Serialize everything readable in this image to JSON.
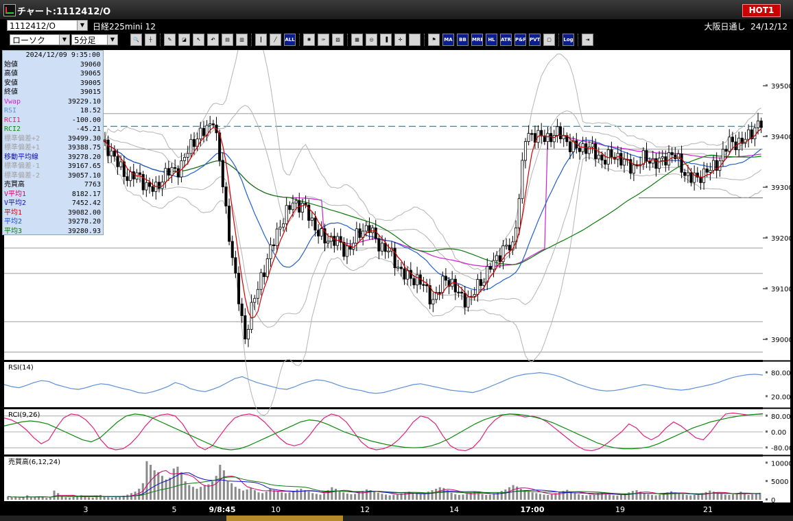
{
  "window": {
    "title": "チャート:1112412/O",
    "hot_label": "HOT1"
  },
  "instrument_bar": {
    "symbol_value": "1112412/O",
    "instrument_name": "日経225mini 12",
    "market": "大阪日通し",
    "date": "24/12/12"
  },
  "toolbar": {
    "chart_type": "ローソク",
    "interval": "5分足",
    "icons": [
      "magnifier-icon",
      "crosshair-icon",
      "pen-icon",
      "eraser-icon",
      "pointer-icon",
      "undo-icon",
      "document-icon",
      "trash-icon",
      "candle-icon",
      "line-chart-icon",
      "all-icon",
      "gear-icon",
      "wrench-icon",
      "palette-icon",
      "chart-add-icon",
      "zoom-chart-icon",
      "bar-chart-icon",
      "mark-icon",
      "blank-icon",
      "flag-icon",
      "ma-icon",
      "bb-icon",
      "mre-icon",
      "hl-icon",
      "atr-icon",
      "pg-icon",
      "pvt-icon",
      "frame-icon",
      "log-icon",
      "exit-icon"
    ],
    "text_buttons": [
      "ALL",
      "MA",
      "BB",
      "MRE",
      "HL",
      "ATR",
      "P&F",
      "PVT",
      "Log"
    ]
  },
  "info_panel": {
    "datetime": "2024/12/09 9:35:00",
    "rows": [
      {
        "label": "始値",
        "value": "39060",
        "color": "#000000"
      },
      {
        "label": "高値",
        "value": "39065",
        "color": "#000000"
      },
      {
        "label": "安値",
        "value": "39005",
        "color": "#000000"
      },
      {
        "label": "終値",
        "value": "39015",
        "color": "#000000"
      },
      {
        "label": "Vwap",
        "value": "39229.10",
        "color": "#d020d0"
      },
      {
        "label": "RSI",
        "value": "18.52",
        "color": "#5b8fd8"
      },
      {
        "label": "RCI1",
        "value": "-100.00",
        "color": "#e0207c"
      },
      {
        "label": "RCI2",
        "value": "-45.21",
        "color": "#0a8a0a"
      },
      {
        "label": "標準偏差+2",
        "value": "39499.30",
        "color": "#a0a0a0"
      },
      {
        "label": "標準偏差+1",
        "value": "39388.75",
        "color": "#a0a0a0"
      },
      {
        "label": "移動平均線",
        "value": "39278.20",
        "color": "#1010b0"
      },
      {
        "label": "標準偏差-1",
        "value": "39167.65",
        "color": "#a0a0a0"
      },
      {
        "label": "標準偏差-2",
        "value": "39057.10",
        "color": "#a0a0a0"
      },
      {
        "label": "売買高",
        "value": "7763",
        "color": "#000000"
      },
      {
        "label": "V平均1",
        "value": "8182.17",
        "color": "#d0006a"
      },
      {
        "label": "V平均2",
        "value": "7452.42",
        "color": "#1010c0"
      },
      {
        "label": "平均1",
        "value": "39082.00",
        "color": "#d00000"
      },
      {
        "label": "平均2",
        "value": "39278.20",
        "color": "#1050d0"
      },
      {
        "label": "平均3",
        "value": "39280.93",
        "color": "#0a7a0a"
      }
    ]
  },
  "chart_data": [
    {
      "type": "candlestick",
      "y_ticks": [
        "39500",
        "39400",
        "39300",
        "39200",
        "39100",
        "39000"
      ],
      "ylim": [
        38965,
        39565
      ],
      "x_labels": [
        "3",
        "5",
        "9/8:45",
        "10",
        "12",
        "14",
        "17:00",
        "19",
        "21"
      ],
      "dashed_level": 39420,
      "reference_levels": [
        39445,
        39375,
        39180,
        39130,
        39035,
        38975
      ],
      "flat_level": 39279,
      "segments": [
        {
          "start": 39385,
          "end": 39320,
          "n": 9
        },
        {
          "start": 39320,
          "end": 39300,
          "n": 8
        },
        {
          "start": 39300,
          "end": 39350,
          "n": 8
        },
        {
          "start": 39350,
          "end": 39440,
          "n": 10
        },
        {
          "start": 39440,
          "end": 39250,
          "n": 4
        },
        {
          "start": 39250,
          "end": 39000,
          "n": 6
        },
        {
          "start": 39000,
          "end": 39130,
          "n": 5
        },
        {
          "start": 39130,
          "end": 39280,
          "n": 10
        },
        {
          "start": 39280,
          "end": 39200,
          "n": 10
        },
        {
          "start": 39200,
          "end": 39180,
          "n": 6
        },
        {
          "start": 39180,
          "end": 39220,
          "n": 8
        },
        {
          "start": 39220,
          "end": 39150,
          "n": 8
        },
        {
          "start": 39150,
          "end": 39085,
          "n": 12
        },
        {
          "start": 39085,
          "end": 39115,
          "n": 4
        },
        {
          "start": 39115,
          "end": 39075,
          "n": 8
        },
        {
          "start": 39075,
          "end": 39150,
          "n": 6
        },
        {
          "start": 39150,
          "end": 39185,
          "n": 7
        },
        {
          "start": 39185,
          "end": 39395,
          "n": 4
        },
        {
          "start": 39395,
          "end": 39405,
          "n": 8
        },
        {
          "start": 39405,
          "end": 39370,
          "n": 12
        },
        {
          "start": 39370,
          "end": 39345,
          "n": 14
        },
        {
          "start": 39345,
          "end": 39360,
          "n": 12
        },
        {
          "start": 39360,
          "end": 39310,
          "n": 8
        },
        {
          "start": 39310,
          "end": 39380,
          "n": 10
        },
        {
          "start": 39380,
          "end": 39420,
          "n": 10
        }
      ]
    },
    {
      "type": "line",
      "title": "RSI(14)",
      "y_ticks": [
        "80.00",
        "20.00"
      ],
      "ylim": [
        0,
        100
      ],
      "values": [
        50,
        45,
        42,
        48,
        55,
        60,
        58,
        50,
        45,
        40,
        38,
        42,
        48,
        52,
        50,
        45,
        40,
        36,
        30,
        28,
        32,
        38,
        45,
        55,
        50,
        40,
        35,
        32,
        38,
        45,
        55,
        65,
        70,
        62,
        55,
        50,
        45,
        40,
        38,
        44,
        52,
        58,
        62,
        60,
        55,
        48,
        42,
        38,
        35,
        30,
        28,
        30,
        35,
        40,
        45,
        50,
        52,
        48,
        44,
        40,
        36,
        34,
        32,
        30,
        35,
        42,
        50,
        58,
        66,
        72,
        76,
        78,
        80,
        78,
        74,
        68,
        60,
        52,
        46,
        40,
        36,
        34,
        35,
        38,
        42,
        46,
        50,
        48,
        44,
        40,
        38,
        36,
        38,
        42,
        46,
        50,
        55,
        62,
        68,
        72,
        75,
        76,
        74
      ]
    },
    {
      "type": "line",
      "title": "RCI(9,26)",
      "y_ticks": [
        "80.00",
        "0.00",
        "-80.00"
      ],
      "ylim": [
        -100,
        100
      ],
      "series": [
        {
          "values": [
            70,
            60,
            40,
            10,
            -30,
            -60,
            -40,
            20,
            70,
            90,
            85,
            60,
            20,
            -40,
            -80,
            -90,
            -85,
            -60,
            -20,
            30,
            70,
            85,
            90,
            80,
            40,
            -20,
            -70,
            -90,
            -70,
            -20,
            30,
            70,
            85,
            90,
            80,
            50,
            10,
            -30,
            -60,
            -70,
            -60,
            -20,
            30,
            70,
            90,
            80,
            50,
            0,
            -50,
            -80,
            -90,
            -85,
            -70,
            -40,
            0,
            50,
            80,
            70,
            40,
            -20,
            -70,
            -90,
            -95,
            -80,
            -40,
            20,
            60,
            85,
            90,
            85,
            75,
            80,
            70,
            50,
            20,
            -10,
            -40,
            -70,
            -90,
            -95,
            -85,
            -60,
            -30,
            0,
            40,
            20,
            -20,
            -40,
            -20,
            20,
            50,
            30,
            0,
            -30,
            -40,
            0,
            50,
            90,
            95,
            90,
            85,
            88,
            92
          ]
        },
        {
          "values": [
            30,
            40,
            50,
            55,
            50,
            40,
            20,
            0,
            -20,
            -40,
            -50,
            -30,
            10,
            50,
            80,
            90,
            85,
            70,
            50,
            30,
            10,
            -10,
            -30,
            -50,
            -70,
            -85,
            -90,
            -85,
            -70,
            -50,
            -30,
            -10,
            10,
            30,
            50,
            60,
            55,
            40,
            20,
            0,
            -15,
            -30,
            -45,
            -55,
            -65,
            -72,
            -78,
            -80,
            -78,
            -70,
            -55,
            -35,
            -10,
            15,
            40,
            60,
            75,
            85,
            90,
            88,
            82,
            72,
            60,
            45,
            25,
            5,
            -15,
            -35,
            -55,
            -70,
            -80,
            -85,
            -85,
            -82,
            -75,
            -60,
            -40,
            -20,
            0,
            20,
            35,
            50,
            60,
            70,
            78,
            84,
            88,
            90
          ]
        }
      ]
    },
    {
      "type": "bar",
      "title": "売買高(6,12,24)",
      "y_ticks": [
        "10000",
        "5000",
        "0"
      ],
      "ylim": [
        0,
        11000
      ],
      "values": [
        900,
        600,
        800,
        500,
        700,
        1200,
        600,
        800,
        900,
        700,
        500,
        600,
        2500,
        1800,
        900,
        700,
        600,
        800,
        1000,
        1200,
        900,
        700,
        600,
        800,
        1300,
        900,
        700,
        600,
        800,
        900,
        1100,
        1400,
        1800,
        2200,
        3000,
        4500,
        10500,
        9500,
        8000,
        7500,
        6500,
        5500,
        6000,
        8500,
        9000,
        7500,
        5000,
        4000,
        3500,
        3000,
        3500,
        4000,
        4200,
        5000,
        6500,
        9500,
        8000,
        5000,
        4500,
        3500,
        3000,
        2500,
        2800,
        3200,
        2600,
        2000,
        1800,
        2200,
        3000,
        2600,
        2400,
        2000,
        1800,
        2000,
        2400,
        2800,
        3000,
        2600,
        2200,
        1800,
        1600,
        1400,
        1800,
        2600,
        3400,
        3000,
        2500,
        2000,
        1700,
        1500,
        1600,
        2000,
        2400,
        2800,
        2600,
        2200,
        1900,
        1600,
        1400,
        1200,
        1300,
        1500,
        1700,
        2000,
        2200,
        1800,
        1600,
        1500,
        1700,
        2200,
        2600,
        3000,
        3400,
        3200,
        2600,
        1900,
        1500,
        1300,
        1400,
        1600,
        2000,
        2200,
        1800,
        1500,
        1300,
        1400,
        1700,
        2000,
        2400,
        2800,
        3400,
        4000,
        3600,
        3000,
        2600,
        2200,
        2000,
        1800,
        1600,
        1400,
        1300,
        1500,
        1800,
        2100,
        2400,
        2700,
        2200,
        1800,
        1500,
        1300,
        1200,
        1300,
        1500,
        1700,
        1900,
        1600,
        1400,
        1200,
        1100,
        1300,
        1600,
        2000,
        2400,
        2600,
        2200,
        1800,
        1500,
        1300,
        1200,
        1400,
        1700,
        2000,
        2300,
        2000,
        1700,
        1500,
        1300,
        1200,
        1300,
        1500,
        1800,
        2100,
        2500,
        2200,
        1900,
        1600,
        1400,
        1300,
        1500,
        1800,
        2200,
        1600,
        1300,
        1500,
        1700,
        1900
      ]
    }
  ]
}
